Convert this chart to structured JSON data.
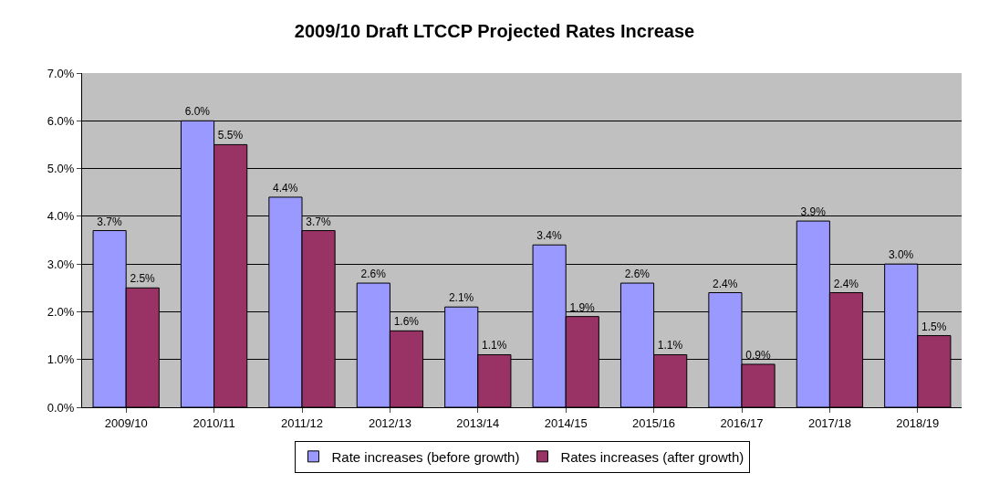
{
  "chart_data": {
    "type": "bar",
    "title": "2009/10 Draft LTCCP Projected Rates Increase",
    "categories": [
      "2009/10",
      "2010/11",
      "2011/12",
      "2012/13",
      "2013/14",
      "2014/15",
      "2015/16",
      "2016/17",
      "2017/18",
      "2018/19"
    ],
    "series": [
      {
        "name": "Rate increases (before growth)",
        "color": "#9999ff",
        "values": [
          3.7,
          6.0,
          4.4,
          2.6,
          2.1,
          3.4,
          2.6,
          2.4,
          3.9,
          3.0
        ],
        "value_labels": [
          "3.7%",
          "6.0%",
          "4.4%",
          "2.6%",
          "2.1%",
          "3.4%",
          "2.6%",
          "2.4%",
          "3.9%",
          "3.0%"
        ]
      },
      {
        "name": "Rates increases (after growth)",
        "color": "#993366",
        "values": [
          2.5,
          5.5,
          3.7,
          1.6,
          1.1,
          1.9,
          1.1,
          0.9,
          2.4,
          1.5
        ],
        "value_labels": [
          "2.5%",
          "5.5%",
          "3.7%",
          "1.6%",
          "1.1%",
          "1.9%",
          "1.1%",
          "0.9%",
          "2.4%",
          "1.5%"
        ]
      }
    ],
    "ylim": [
      0,
      7
    ],
    "yticks": [
      {
        "value": 0,
        "label": "0.0%"
      },
      {
        "value": 1,
        "label": "1.0%"
      },
      {
        "value": 2,
        "label": "2.0%"
      },
      {
        "value": 3,
        "label": "3.0%"
      },
      {
        "value": 4,
        "label": "4.0%"
      },
      {
        "value": 5,
        "label": "5.0%"
      },
      {
        "value": 6,
        "label": "6.0%"
      },
      {
        "value": 7,
        "label": "7.0%"
      }
    ],
    "grid": "y",
    "legend": "bottom"
  }
}
